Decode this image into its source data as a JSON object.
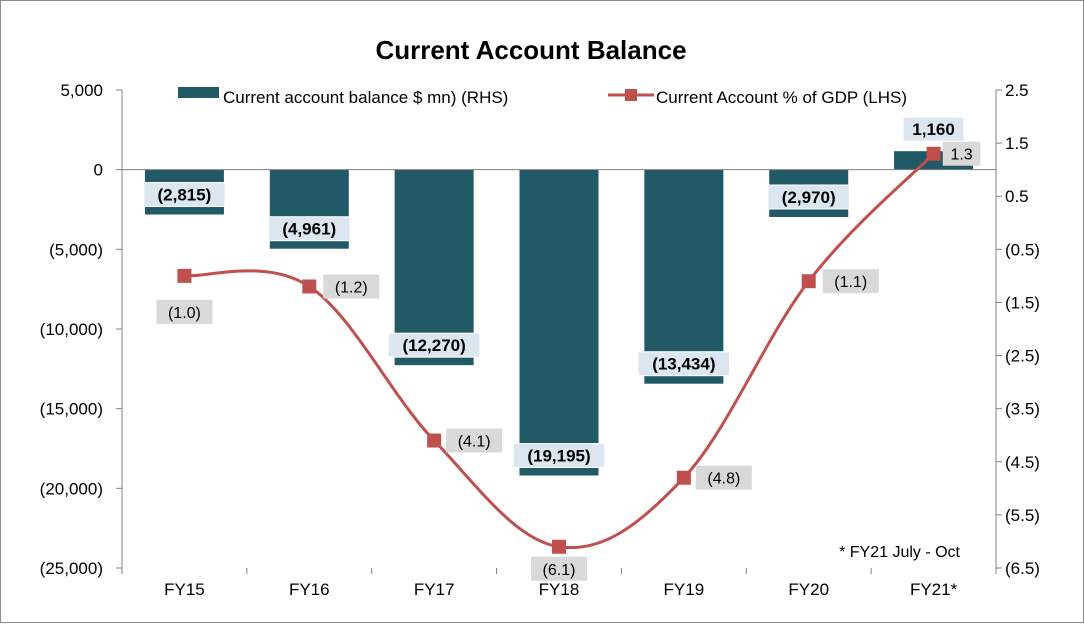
{
  "chart_data": {
    "type": "bar",
    "title": "Current Account Balance",
    "categories": [
      "FY15",
      "FY16",
      "FY17",
      "FY18",
      "FY19",
      "FY20",
      "FY21*"
    ],
    "series": [
      {
        "name": "Current account balance $ mn) (RHS)",
        "type": "bar",
        "axis": "left",
        "color": "#215967",
        "values": [
          -2815,
          -4961,
          -12270,
          -19195,
          -13434,
          -2970,
          1160
        ],
        "labels": [
          "(2,815)",
          "(4,961)",
          "(12,270)",
          "(19,195)",
          "(13,434)",
          "(2,970)",
          "1,160"
        ]
      },
      {
        "name": "Current Account  % of GDP (LHS)",
        "type": "line",
        "axis": "right",
        "color": "#c0504d",
        "values": [
          -1.0,
          -1.2,
          -4.1,
          -6.1,
          -4.8,
          -1.1,
          1.3
        ],
        "labels": [
          "(1.0)",
          "(1.2)",
          "(4.1)",
          "(6.1)",
          "(4.8)",
          "(1.1)",
          "1.3"
        ]
      }
    ],
    "left_axis": {
      "ylim": [
        -25000,
        5000
      ],
      "ticks": [
        5000,
        0,
        -5000,
        -10000,
        -15000,
        -20000,
        -25000
      ],
      "tick_labels": [
        "5,000",
        "0",
        "(5,000)",
        "(10,000)",
        "(15,000)",
        "(20,000)",
        "(25,000)"
      ]
    },
    "right_axis": {
      "ylim": [
        -6.5,
        2.5
      ],
      "ticks": [
        2.5,
        1.5,
        0.5,
        -0.5,
        -1.5,
        -2.5,
        -3.5,
        -4.5,
        -5.5,
        -6.5
      ],
      "tick_labels": [
        "2.5",
        "1.5",
        "0.5",
        "(0.5)",
        "(1.5)",
        "(2.5)",
        "(3.5)",
        "(4.5)",
        "(5.5)",
        "(6.5)"
      ]
    },
    "annotation": "* FY21 July - Oct",
    "legend_position": "top",
    "grid": false
  }
}
